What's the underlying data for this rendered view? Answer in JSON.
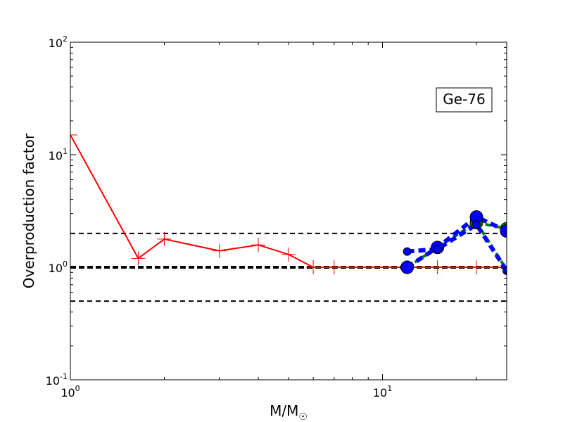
{
  "chart_data": {
    "type": "line",
    "xlabel": "M/M",
    "xlabel_subscript": "☉",
    "ylabel": "Overproduction factor",
    "annotation": "Ge-76",
    "xscale": "log",
    "yscale": "log",
    "xlim": [
      1,
      25
    ],
    "ylim": [
      0.1,
      100
    ],
    "x_ticks": [
      {
        "value": 1,
        "base": "10",
        "exp": "0"
      },
      {
        "value": 10,
        "base": "10",
        "exp": "1"
      }
    ],
    "y_ticks": [
      {
        "value": 0.1,
        "base": "10",
        "exp": "-1"
      },
      {
        "value": 1,
        "base": "10",
        "exp": "0"
      },
      {
        "value": 10,
        "base": "10",
        "exp": "1"
      },
      {
        "value": 100,
        "base": "10",
        "exp": "2"
      }
    ],
    "reference_lines": [
      {
        "y": 2.0,
        "style": "dashed",
        "width": 2,
        "color": "#000000"
      },
      {
        "y": 1.0,
        "style": "dashed",
        "width": 4,
        "color": "#000000"
      },
      {
        "y": 0.5,
        "style": "dashed",
        "width": 2,
        "color": "#000000"
      }
    ],
    "series": [
      {
        "style": "solid",
        "color": "#ff0000",
        "marker": "plus",
        "width": 2,
        "x": [
          1.0,
          1.65,
          2.0,
          3.0,
          4.0,
          5.0,
          6.0,
          7.0,
          12.0,
          15.0,
          20.0,
          25.0
        ],
        "y": [
          15.0,
          1.2,
          1.78,
          1.4,
          1.58,
          1.3,
          1.0,
          1.0,
          1.0,
          1.0,
          1.0,
          1.0
        ]
      },
      {
        "style": "dashed",
        "color": "#008000",
        "marker": "none",
        "width": 4,
        "x": [
          12.0,
          15.0,
          20.0,
          25.0
        ],
        "y": [
          1.0,
          1.5,
          2.5,
          0.95
        ]
      },
      {
        "style": "dashed",
        "color": "#008000",
        "marker": "circle",
        "width": 4,
        "x": [
          20.0,
          25.0
        ],
        "y": [
          2.5,
          2.2
        ]
      },
      {
        "style": "dashed",
        "color": "#0000ff",
        "marker": "circle",
        "width": 6,
        "x": [
          12.0,
          15.0,
          20.0,
          25.0
        ],
        "y": [
          1.0,
          1.5,
          2.8,
          2.1
        ]
      },
      {
        "style": "dashed",
        "color": "#0000ff",
        "marker": "circle-small",
        "width": 6,
        "x": [
          12.0,
          15.0,
          20.0,
          25.0
        ],
        "y": [
          1.38,
          1.45,
          2.4,
          0.93
        ]
      }
    ]
  }
}
